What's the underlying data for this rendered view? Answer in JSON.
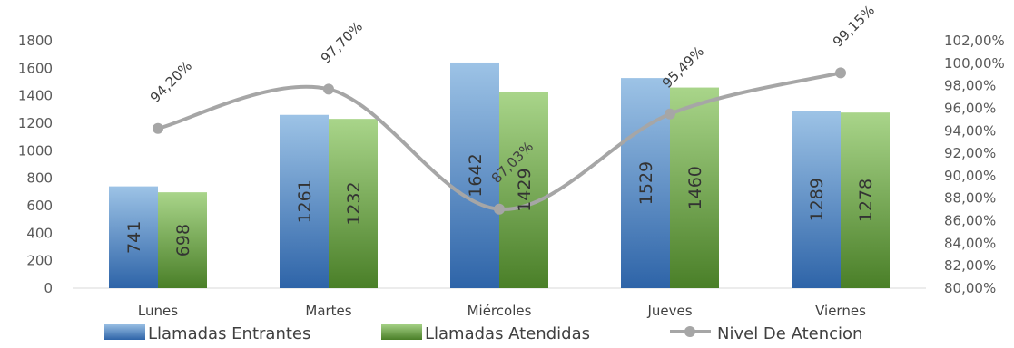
{
  "chart_data": {
    "type": "bar",
    "categories": [
      "Lunes",
      "Martes",
      "Miércoles",
      "Jueves",
      "Viernes"
    ],
    "series": [
      {
        "name": "Llamadas Entrantes",
        "type": "bar",
        "axis": "left",
        "color": "#3d7cc4",
        "values": [
          741,
          1261,
          1642,
          1529,
          1289
        ],
        "labels": [
          "741",
          "1261",
          "1642",
          "1529",
          "1289"
        ]
      },
      {
        "name": "Llamadas Atendidas",
        "type": "bar",
        "axis": "left",
        "color": "#5f9e34",
        "values": [
          698,
          1232,
          1429,
          1460,
          1278
        ],
        "labels": [
          "698",
          "1232",
          "1429",
          "1460",
          "1278"
        ]
      },
      {
        "name": "Nivel De Atencion",
        "type": "line",
        "axis": "right",
        "color": "#a6a6a6",
        "values": [
          94.2,
          97.7,
          87.03,
          95.49,
          99.15
        ],
        "labels": [
          "94,20%",
          "97,70%",
          "87,03%",
          "95,49%",
          "99,15%"
        ]
      }
    ],
    "y_left": {
      "min": 0,
      "max": 1800,
      "ticks": [
        "0",
        "200",
        "400",
        "600",
        "800",
        "1000",
        "1200",
        "1400",
        "1600",
        "1800"
      ]
    },
    "y_right": {
      "min": 80,
      "max": 102,
      "ticks": [
        "80,00%",
        "82,00%",
        "84,00%",
        "86,00%",
        "88,00%",
        "90,00%",
        "92,00%",
        "94,00%",
        "96,00%",
        "98,00%",
        "100,00%",
        "102,00%"
      ]
    },
    "grid": false,
    "legend": "bottom"
  }
}
